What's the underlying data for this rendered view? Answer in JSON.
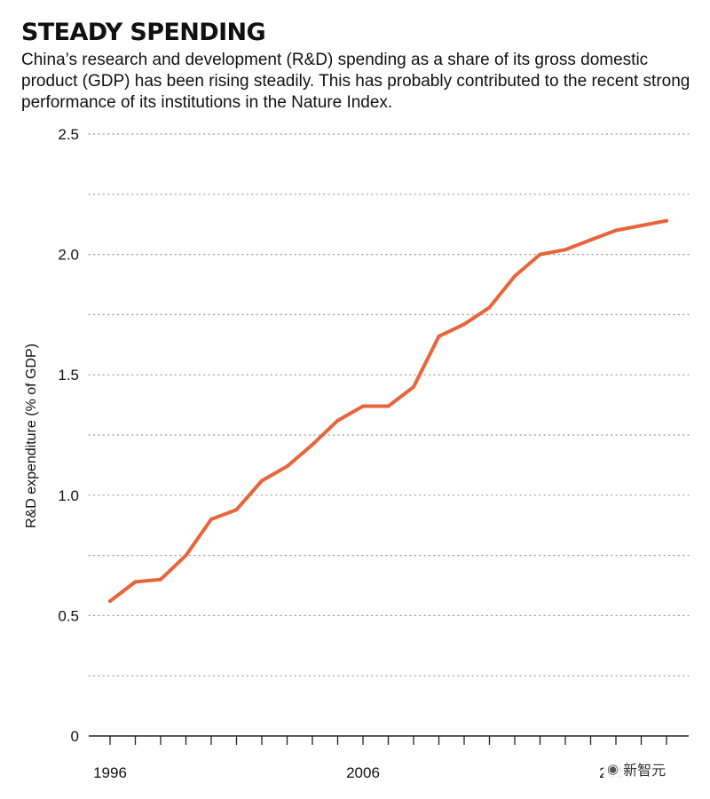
{
  "header": {
    "title": "STEADY SPENDING",
    "subtitle": "China’s research and development (R&D) spending as a share of its gross domestic product (GDP) has been rising steadily. This has probably contributed to the recent strong performance of its institutions in the Nature Index."
  },
  "chart_data": {
    "type": "line",
    "title": "STEADY SPENDING",
    "xlabel": "",
    "ylabel": "R&D expenditure (% of GDP)",
    "x": [
      1996,
      1997,
      1998,
      1999,
      2000,
      2001,
      2002,
      2003,
      2004,
      2005,
      2006,
      2007,
      2008,
      2009,
      2010,
      2011,
      2012,
      2013,
      2014,
      2015,
      2016,
      2017,
      2018
    ],
    "series": [
      {
        "name": "",
        "values": [
          0.56,
          0.64,
          0.65,
          0.75,
          0.9,
          0.94,
          1.06,
          1.12,
          1.21,
          1.31,
          1.37,
          1.37,
          1.45,
          1.66,
          1.71,
          1.78,
          1.91,
          2.0,
          2.02,
          2.06,
          2.1,
          2.12,
          2.14
        ]
      }
    ],
    "xlim": [
      1996,
      2018
    ],
    "ylim": [
      0,
      2.5
    ],
    "y_ticks": [
      {
        "value": 0,
        "label": "0"
      },
      {
        "value": 0.5,
        "label": "0.5"
      },
      {
        "value": 1.0,
        "label": "1.0"
      },
      {
        "value": 1.5,
        "label": "1.5"
      },
      {
        "value": 2.0,
        "label": "2.0"
      },
      {
        "value": 2.5,
        "label": "2.5"
      }
    ],
    "x_tick_labels": [
      {
        "value": 1996,
        "label": "1996"
      },
      {
        "value": 2006,
        "label": "2006"
      },
      {
        "value": 2016,
        "label": "2016"
      }
    ],
    "grid": "dotted horizontal",
    "legend": "none",
    "colors": {
      "line": "#E8643A",
      "grid": "#9a9a9a",
      "axis": "#222222",
      "text": "#111111"
    }
  },
  "watermark": {
    "text": "新智元",
    "icon": "wechat-icon"
  }
}
